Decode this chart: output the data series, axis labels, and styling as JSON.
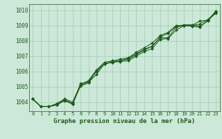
{
  "title": "Graphe pression niveau de la mer (hPa)",
  "background_color": "#cce8d8",
  "plot_bg_color": "#cce8d8",
  "grid_color": "#aacfba",
  "line_color": "#1e5c1e",
  "marker_color": "#1e5c1e",
  "xlim": [
    -0.5,
    23.5
  ],
  "ylim": [
    1003.4,
    1010.4
  ],
  "yticks": [
    1004,
    1005,
    1006,
    1007,
    1008,
    1009,
    1010
  ],
  "xticks": [
    0,
    1,
    2,
    3,
    4,
    5,
    6,
    7,
    8,
    9,
    10,
    11,
    12,
    13,
    14,
    15,
    16,
    17,
    18,
    19,
    20,
    21,
    22,
    23
  ],
  "series": [
    [
      1004.2,
      1003.7,
      1003.7,
      1003.85,
      1004.1,
      1003.85,
      1005.1,
      1005.3,
      1005.8,
      1006.5,
      1006.6,
      1006.65,
      1006.7,
      1007.0,
      1007.3,
      1007.5,
      1008.1,
      1008.15,
      1008.7,
      1009.0,
      1009.0,
      1009.3,
      1009.35,
      1009.8
    ],
    [
      1004.2,
      1003.7,
      1003.7,
      1003.85,
      1004.15,
      1003.9,
      1005.05,
      1005.25,
      1006.05,
      1006.5,
      1006.6,
      1006.7,
      1006.8,
      1007.1,
      1007.4,
      1007.65,
      1008.2,
      1008.2,
      1008.9,
      1009.0,
      1009.0,
      1009.1,
      1009.4,
      1009.85
    ],
    [
      1004.2,
      1003.7,
      1003.7,
      1003.9,
      1004.2,
      1004.0,
      1005.15,
      1005.4,
      1006.1,
      1006.6,
      1006.7,
      1006.8,
      1006.9,
      1007.25,
      1007.55,
      1007.85,
      1008.35,
      1008.55,
      1009.0,
      1009.0,
      1008.95,
      1008.9,
      1009.35,
      1009.95
    ],
    [
      1004.2,
      1003.7,
      1003.7,
      1003.8,
      1004.1,
      1003.9,
      1005.2,
      1005.35,
      1006.0,
      1006.5,
      1006.65,
      1006.7,
      1006.85,
      1007.15,
      1007.45,
      1007.65,
      1008.25,
      1008.5,
      1008.95,
      1009.05,
      1009.05,
      1008.95,
      1009.3,
      1009.9
    ]
  ]
}
